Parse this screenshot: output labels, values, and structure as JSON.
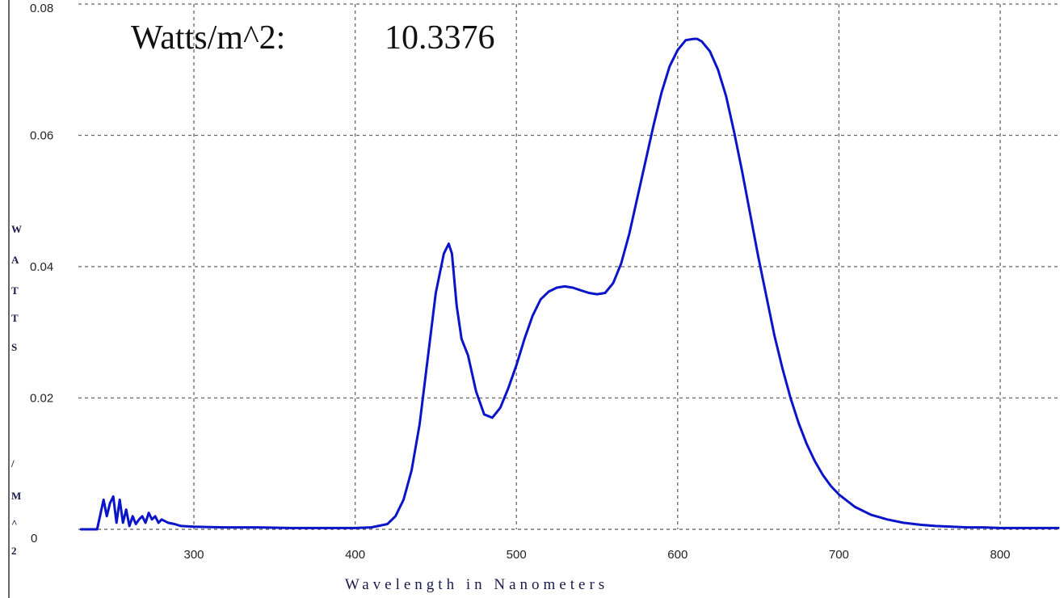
{
  "readout": {
    "label": "Watts/m^2:",
    "value": "10.3376"
  },
  "chart_data": {
    "type": "line",
    "title": "",
    "xlabel": "Wavelength in Nanometers",
    "ylabel": "WATTS/M^2",
    "ylabel_letters": [
      "W",
      "A",
      "T",
      "T",
      "S",
      "/",
      "M",
      "^",
      "2"
    ],
    "xlim": [
      230,
      840
    ],
    "ylim": [
      0,
      0.08
    ],
    "x_ticks": [
      300,
      400,
      500,
      600,
      700,
      800
    ],
    "y_ticks": [
      0,
      0.02,
      0.04,
      0.06,
      0.08
    ],
    "y_tick_labels": [
      "0",
      "0.02",
      "0.04",
      "0.06",
      "0.08"
    ],
    "grid": true,
    "line_color": "#0a14c8",
    "series": [
      {
        "x": [
          230,
          240,
          244,
          246,
          248,
          250,
          252,
          254,
          256,
          258,
          260,
          262,
          264,
          266,
          268,
          270,
          272,
          274,
          276,
          278,
          280,
          284,
          288,
          292,
          300,
          320,
          340,
          360,
          380,
          400,
          410,
          420,
          425,
          430,
          435,
          440,
          445,
          450,
          455,
          458,
          460,
          463,
          466,
          470,
          475,
          480,
          485,
          490,
          495,
          500,
          505,
          510,
          515,
          520,
          525,
          530,
          535,
          540,
          545,
          550,
          555,
          560,
          565,
          570,
          575,
          580,
          585,
          590,
          595,
          600,
          605,
          610,
          612,
          615,
          620,
          625,
          630,
          635,
          640,
          645,
          650,
          655,
          660,
          665,
          670,
          675,
          680,
          685,
          690,
          695,
          700,
          710,
          720,
          730,
          740,
          750,
          760,
          770,
          780,
          790,
          800,
          820,
          840
        ],
        "y": [
          0,
          0,
          0.0045,
          0.002,
          0.004,
          0.005,
          0.001,
          0.0045,
          0.001,
          0.003,
          0.0005,
          0.002,
          0.0008,
          0.0015,
          0.002,
          0.001,
          0.0025,
          0.0015,
          0.002,
          0.001,
          0.0015,
          0.001,
          0.0008,
          0.0005,
          0.0004,
          0.0003,
          0.0003,
          0.0002,
          0.0002,
          0.0002,
          0.0003,
          0.0008,
          0.002,
          0.0045,
          0.009,
          0.016,
          0.026,
          0.036,
          0.042,
          0.0435,
          0.042,
          0.034,
          0.029,
          0.0265,
          0.021,
          0.0175,
          0.017,
          0.0185,
          0.0215,
          0.025,
          0.029,
          0.0325,
          0.035,
          0.0362,
          0.0368,
          0.037,
          0.0368,
          0.0364,
          0.036,
          0.0358,
          0.036,
          0.0375,
          0.0405,
          0.045,
          0.0505,
          0.056,
          0.0615,
          0.0665,
          0.0705,
          0.073,
          0.0745,
          0.0747,
          0.0747,
          0.0743,
          0.0728,
          0.07,
          0.066,
          0.0605,
          0.0545,
          0.048,
          0.0415,
          0.0355,
          0.0295,
          0.0245,
          0.02,
          0.0162,
          0.013,
          0.0104,
          0.0083,
          0.0066,
          0.0053,
          0.0034,
          0.0022,
          0.0015,
          0.001,
          0.0007,
          0.0005,
          0.0004,
          0.0003,
          0.0003,
          0.0002,
          0.0002,
          0.0002
        ]
      }
    ]
  }
}
